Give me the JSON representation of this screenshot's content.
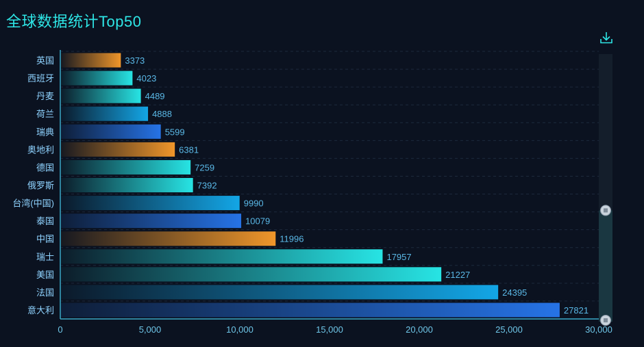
{
  "title": "全球数据统计Top50",
  "toolbox": {
    "download_icon": "download-icon"
  },
  "colors": {
    "background": "#0b1220",
    "title": "#2ee6e6",
    "axis": "#3aa9c9",
    "grid": "#1d2a3c",
    "orange": "#f0962a",
    "cyan": "#27e4e4",
    "sky": "#13a6e6",
    "blue": "#2673e6"
  },
  "chart_data": {
    "type": "bar",
    "orientation": "horizontal",
    "title": "全球数据统计Top50",
    "categories": [
      "英国",
      "西班牙",
      "丹麦",
      "荷兰",
      "瑞典",
      "奥地利",
      "德国",
      "俄罗斯",
      "台湾(中国)",
      "泰国",
      "中国",
      "瑞士",
      "美国",
      "法国",
      "意大利"
    ],
    "values": [
      3373,
      4023,
      4489,
      4888,
      5599,
      6381,
      7259,
      7392,
      9990,
      10079,
      11996,
      17957,
      21227,
      24395,
      27821
    ],
    "xlim": [
      0,
      30000
    ],
    "xticks": [
      "0",
      "5,000",
      "10,000",
      "15,000",
      "20,000",
      "25,000",
      "30,000"
    ],
    "xtick_values": [
      0,
      5000,
      10000,
      15000,
      20000,
      25000,
      30000
    ],
    "color_cycle": [
      "orange",
      "cyan",
      "cyan",
      "sky",
      "blue"
    ],
    "grid": true,
    "data_labels": true,
    "datazoom": {
      "orientation": "vertical",
      "placement": "right",
      "start": 0.62,
      "end": 1.0
    }
  }
}
